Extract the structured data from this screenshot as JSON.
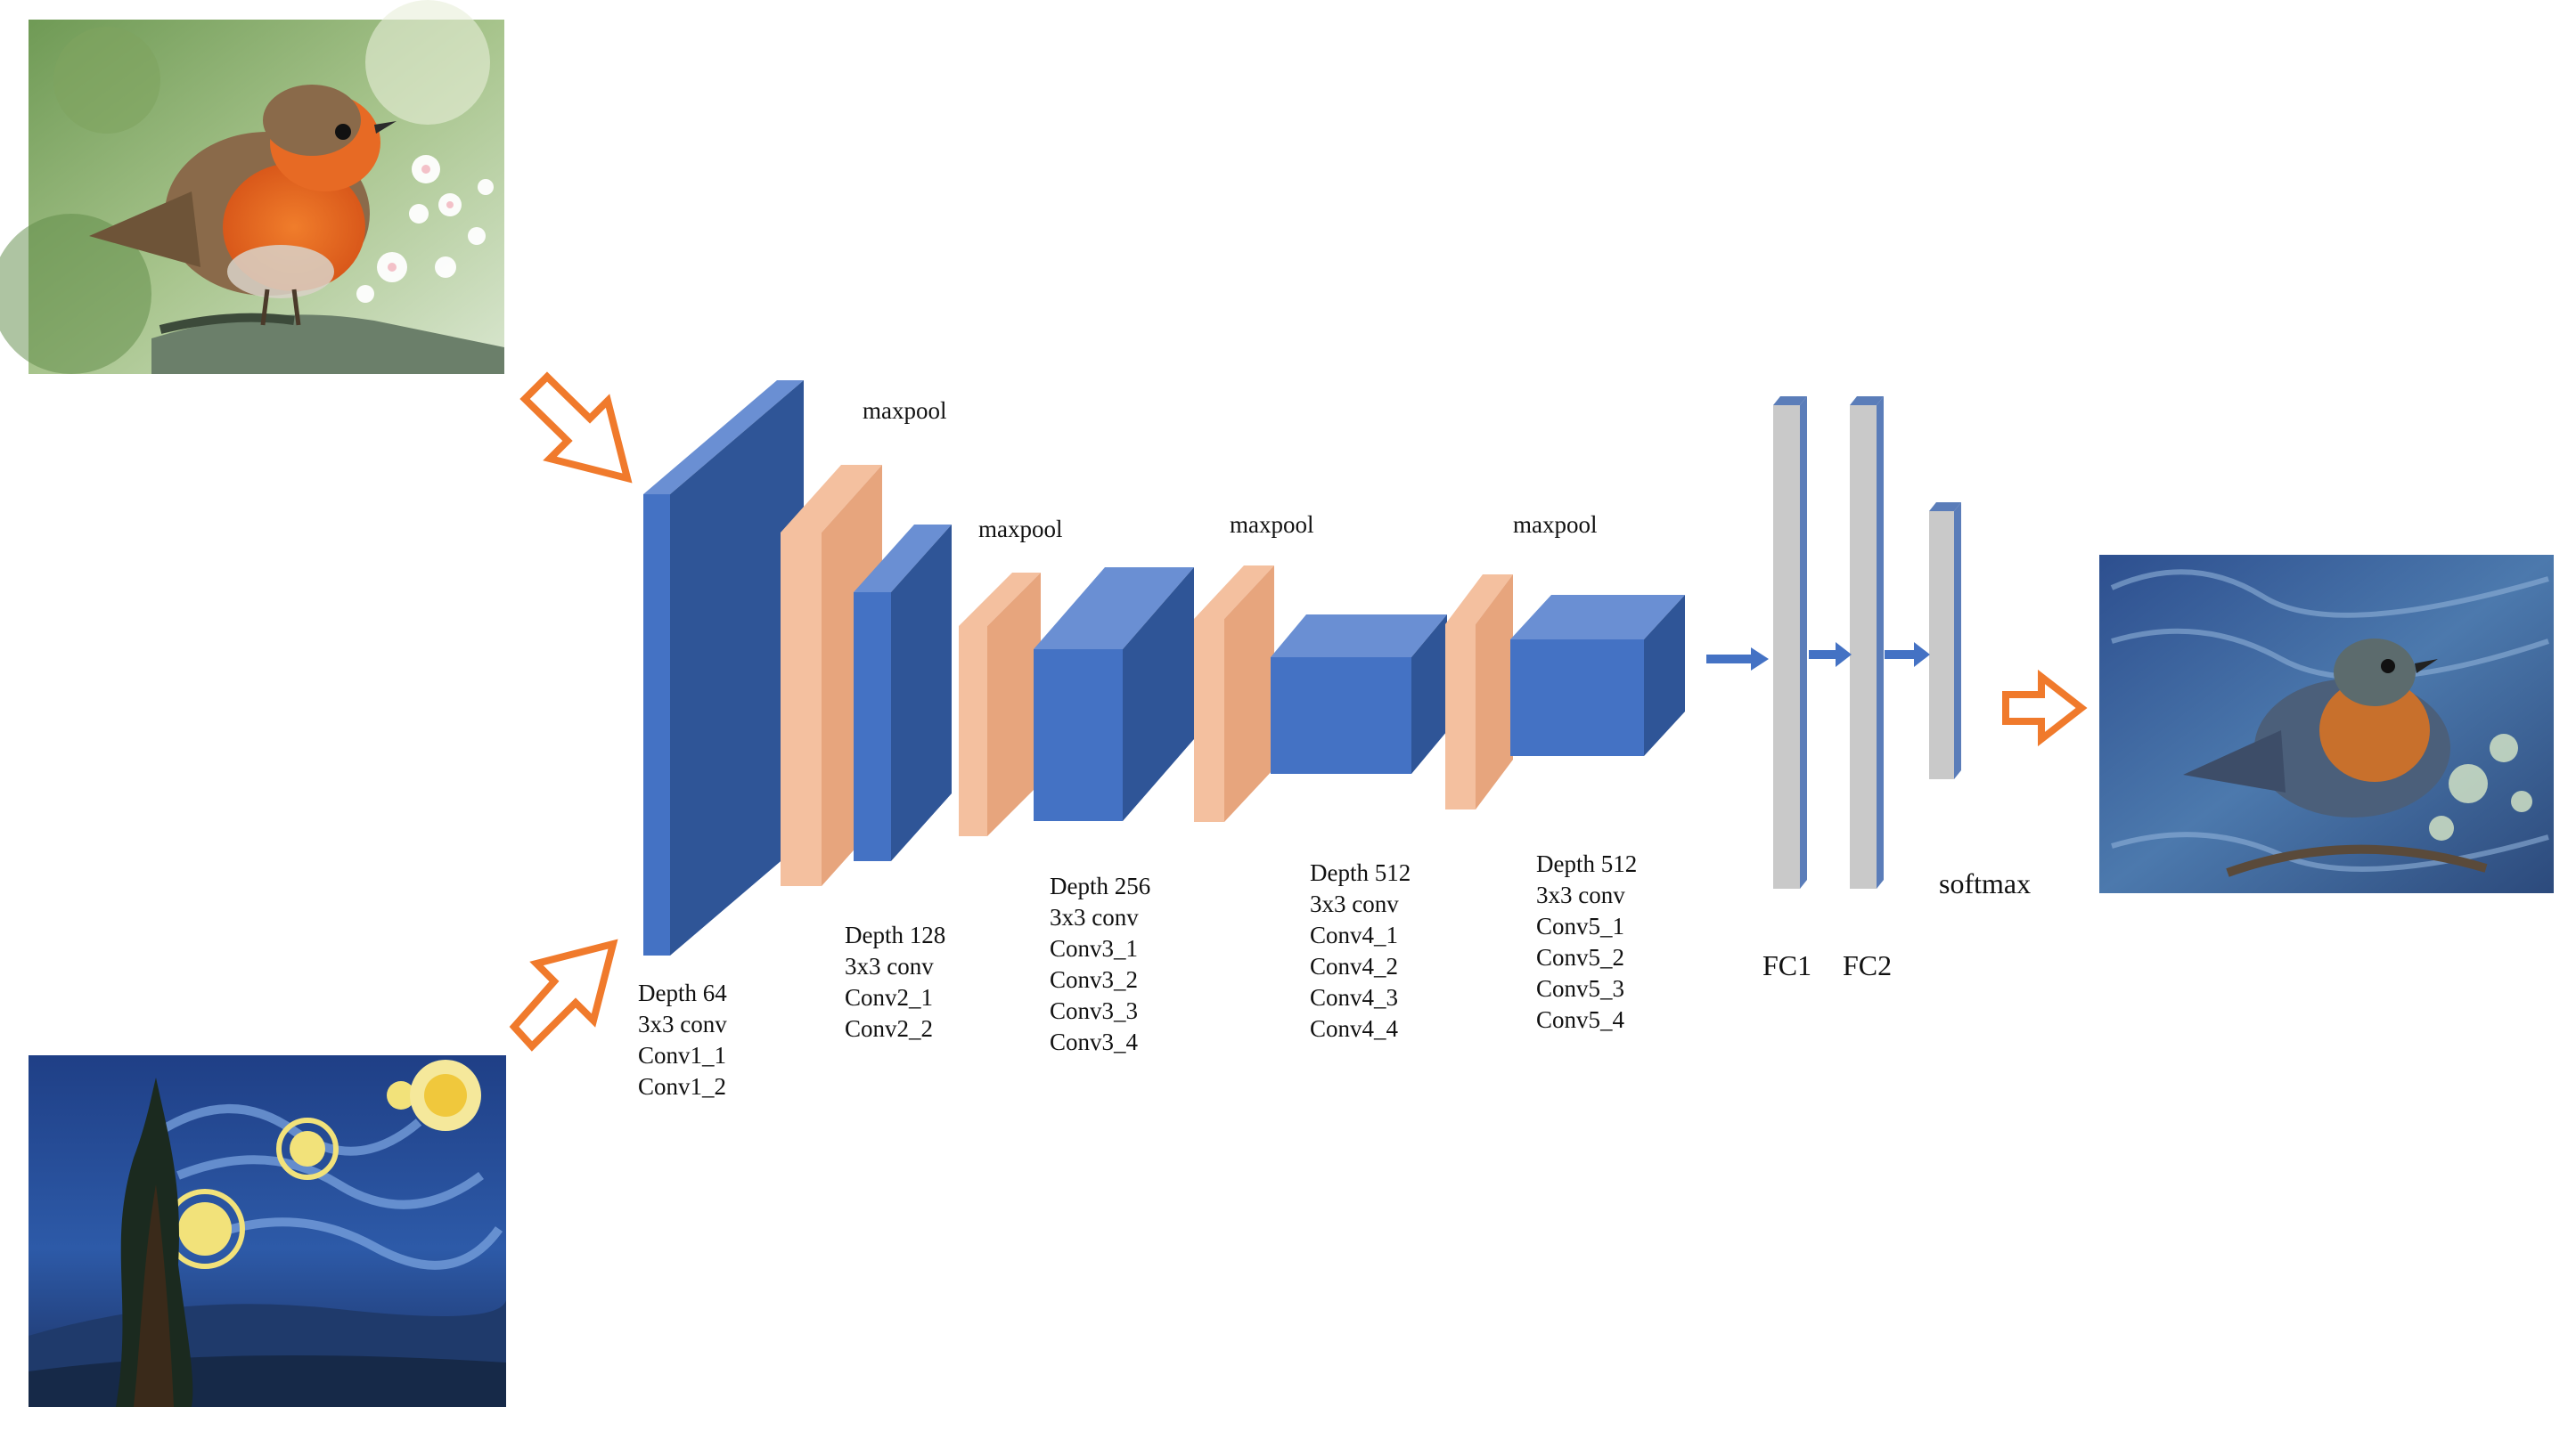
{
  "images": {
    "content": "robin-photo",
    "style": "starry-night-painting",
    "output": "stylized-robin"
  },
  "colors": {
    "conv_front": "#4472c4",
    "conv_top": "#6a8fd3",
    "conv_side": "#2f5597",
    "pool_front": "#f4c09f",
    "pool_side": "#e7a57d",
    "fc_front": "#c9c9c9",
    "fc_edge": "#5b7db9",
    "arrow_orange": "#f07a2c",
    "arrow_blue": "#4472c4"
  },
  "blocks": [
    {
      "lines": [
        "Depth 64",
        "3x3 conv",
        "Conv1_1",
        "Conv1_2"
      ]
    },
    {
      "lines": [
        "Depth 128",
        "3x3 conv",
        "Conv2_1",
        "Conv2_2"
      ]
    },
    {
      "lines": [
        "Depth 256",
        "3x3 conv",
        "Conv3_1",
        "Conv3_2",
        "Conv3_3",
        "Conv3_4"
      ]
    },
    {
      "lines": [
        "Depth 512",
        "3x3 conv",
        "Conv4_1",
        "Conv4_2",
        "Conv4_3",
        "Conv4_4"
      ]
    },
    {
      "lines": [
        "Depth 512",
        "3x3 conv",
        "Conv5_1",
        "Conv5_2",
        "Conv5_3",
        "Conv5_4"
      ]
    }
  ],
  "maxpool_labels": [
    "maxpool",
    "maxpool",
    "maxpool",
    "maxpool"
  ],
  "fc_labels": [
    "FC1",
    "FC2"
  ],
  "softmax_label": "softmax"
}
